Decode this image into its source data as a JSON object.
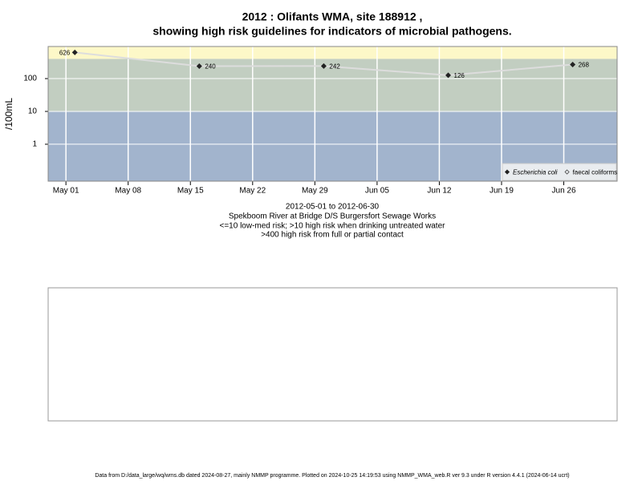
{
  "chart_data": {
    "type": "line",
    "title": "2012 : Olifants WMA, site 188912 ,",
    "subtitle": "showing high risk guidelines for indicators of microbial pathogens.",
    "y_label": "/100mL",
    "notes": [
      "2012-05-01 to 2012-06-30",
      "Spekboom River at Bridge D/S Burgersfort Sewage Works",
      "<=10 low-med risk; >10 high risk when drinking untreated water",
      ">400 high risk from full or partial contact"
    ],
    "x": [
      "2012-05-02",
      "2012-05-16",
      "2012-05-30",
      "2012-06-13",
      "2012-06-27"
    ],
    "series": [
      {
        "name": "Escherichia coli",
        "color": "#222222",
        "line_color": "#dddddd",
        "values": [
          626,
          240,
          242,
          126,
          268
        ]
      },
      {
        "name": "faecal coliforms",
        "color": "#444444",
        "line_color": "#dddddd",
        "values": [
          null,
          null,
          null,
          null,
          null
        ]
      }
    ],
    "log_y": true,
    "ylim": [
      0.075,
      950
    ],
    "yticks": [
      1,
      10,
      100
    ],
    "xlim": [
      "2012-04-29",
      "2012-07-02"
    ],
    "xticks": [
      {
        "value": "2012-05-01",
        "label": "May 01"
      },
      {
        "value": "2012-05-08",
        "label": "May 08"
      },
      {
        "value": "2012-05-15",
        "label": "May 15"
      },
      {
        "value": "2012-05-22",
        "label": "May 22"
      },
      {
        "value": "2012-05-29",
        "label": "May 29"
      },
      {
        "value": "2012-06-05",
        "label": "Jun 05"
      },
      {
        "value": "2012-06-12",
        "label": "Jun 12"
      },
      {
        "value": "2012-06-19",
        "label": "Jun 19"
      },
      {
        "value": "2012-06-26",
        "label": "Jun 26"
      }
    ],
    "thresholds": [
      10,
      400
    ],
    "band_colors": [
      "#a2b4cd",
      "#c2cec1",
      "#fdf8c8"
    ],
    "grid": true,
    "legend": "bottom-right",
    "footer": "Data from D:/data_large/wq/wms.db dated 2024-08-27, mainly NMMP programme. Plotted on 2024-10-25 14:19:53 using NMMP_WMA_web.R ver 9.3 under R version 4.4.1 (2024-06-14 ucrt)"
  }
}
